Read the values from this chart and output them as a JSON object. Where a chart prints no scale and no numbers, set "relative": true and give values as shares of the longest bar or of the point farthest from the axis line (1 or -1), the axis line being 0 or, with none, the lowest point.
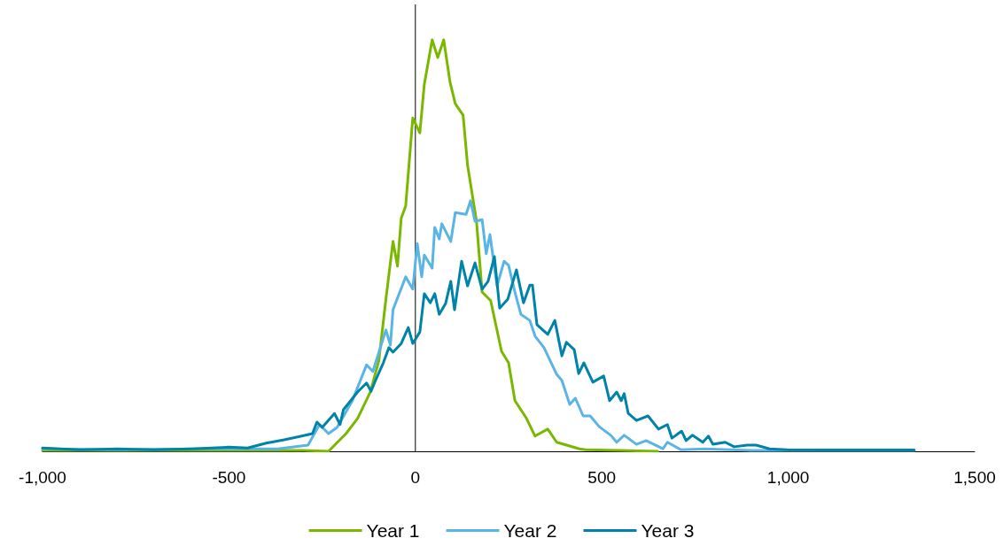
{
  "chart_data": {
    "type": "line",
    "relative": true,
    "grid": false,
    "legend": "bottom",
    "marker": "none",
    "line_style": "solid",
    "ref_lines": [
      {
        "axis": "x",
        "value": 0,
        "color": "#000000"
      }
    ],
    "xlim": [
      -1000,
      1500
    ],
    "xticks": [
      {
        "value": -1000,
        "label": "-1,000"
      },
      -500,
      0,
      500,
      {
        "value": 1000,
        "label": "1,000"
      },
      {
        "value": 1500,
        "label": "1,500"
      }
    ],
    "series": [
      {
        "name": "Year 1",
        "color": "#7ab800",
        "x": [
          -1000,
          -700,
          -500,
          -300,
          -233,
          -186,
          -155,
          -121,
          -98,
          -79,
          -60,
          -48,
          -38,
          -26,
          -7,
          12,
          24,
          45,
          60,
          76,
          93,
          107,
          128,
          140,
          164,
          179,
          202,
          231,
          250,
          267,
          298,
          321,
          355,
          379,
          440,
          457,
          550,
          650
        ],
        "values": [
          0.002,
          0.002,
          0.002,
          0.002,
          0,
          0.043,
          0.08,
          0.144,
          0.22,
          0.37,
          0.51,
          0.45,
          0.566,
          0.596,
          0.81,
          0.774,
          0.892,
          1,
          0.957,
          1,
          0.897,
          0.845,
          0.817,
          0.695,
          0.559,
          0.387,
          0.366,
          0.243,
          0.215,
          0.123,
          0.08,
          0.037,
          0.054,
          0.022,
          0.006,
          0.004,
          0.002,
          0
        ]
      },
      {
        "name": "Year 2",
        "color": "#5ab4e5",
        "x": [
          -1000,
          -800,
          -600,
          -448,
          -369,
          -288,
          -257,
          -233,
          -210,
          -169,
          -131,
          -114,
          -79,
          -67,
          -60,
          -26,
          -7,
          5,
          17,
          24,
          45,
          52,
          64,
          71,
          95,
          107,
          136,
          148,
          160,
          179,
          190,
          200,
          219,
          238,
          250,
          267,
          283,
          307,
          321,
          345,
          379,
          393,
          414,
          429,
          450,
          469,
          493,
          524,
          540,
          560,
          593,
          619,
          664,
          676,
          712,
          774,
          900,
          1100,
          1338
        ],
        "values": [
          0.006,
          0.004,
          0.006,
          0.006,
          0.006,
          0.015,
          0.065,
          0.043,
          0.058,
          0.123,
          0.21,
          0.194,
          0.295,
          0.258,
          0.344,
          0.424,
          0.394,
          0.505,
          0.424,
          0.477,
          0.445,
          0.544,
          0.516,
          0.553,
          0.51,
          0.58,
          0.576,
          0.609,
          0.559,
          0.563,
          0.48,
          0.527,
          0.402,
          0.462,
          0.452,
          0.387,
          0.333,
          0.318,
          0.28,
          0.252,
          0.187,
          0.172,
          0.114,
          0.129,
          0.086,
          0.086,
          0.06,
          0.039,
          0.022,
          0.039,
          0.017,
          0.026,
          0.006,
          0.022,
          0.004,
          0.006,
          0.002,
          0.002,
          0.002
        ]
      },
      {
        "name": "Year 3",
        "color": "#0083a9",
        "x": [
          -1000,
          -900,
          -800,
          -700,
          -600,
          -500,
          -450,
          -400,
          -352,
          -305,
          -276,
          -264,
          -250,
          -217,
          -202,
          -193,
          -155,
          -131,
          -119,
          -107,
          -86,
          -71,
          -60,
          -38,
          -19,
          -7,
          12,
          24,
          40,
          52,
          64,
          81,
          95,
          105,
          124,
          140,
          160,
          179,
          195,
          212,
          226,
          248,
          271,
          290,
          307,
          314,
          326,
          355,
          374,
          393,
          405,
          426,
          438,
          452,
          476,
          505,
          521,
          540,
          552,
          560,
          571,
          593,
          624,
          652,
          676,
          688,
          714,
          726,
          743,
          771,
          786,
          798,
          831,
          855,
          890,
          914,
          950,
          998,
          1100,
          1200,
          1338
        ],
        "values": [
          0.008,
          0.004,
          0.006,
          0.004,
          0.006,
          0.01,
          0.008,
          0.02,
          0.028,
          0.037,
          0.043,
          0.071,
          0.058,
          0.092,
          0.065,
          0.101,
          0.144,
          0.166,
          0.146,
          0.172,
          0.215,
          0.252,
          0.241,
          0.262,
          0.301,
          0.262,
          0.29,
          0.383,
          0.361,
          0.383,
          0.333,
          0.359,
          0.413,
          0.344,
          0.462,
          0.402,
          0.458,
          0.394,
          0.413,
          0.473,
          0.348,
          0.37,
          0.441,
          0.361,
          0.404,
          0.404,
          0.308,
          0.284,
          0.318,
          0.232,
          0.265,
          0.247,
          0.189,
          0.215,
          0.168,
          0.183,
          0.123,
          0.144,
          0.123,
          0.14,
          0.092,
          0.075,
          0.086,
          0.054,
          0.065,
          0.032,
          0.049,
          0.026,
          0.039,
          0.022,
          0.037,
          0.017,
          0.022,
          0.011,
          0.015,
          0.015,
          0.006,
          0.004,
          0.003,
          0.003,
          0.003
        ]
      }
    ]
  }
}
